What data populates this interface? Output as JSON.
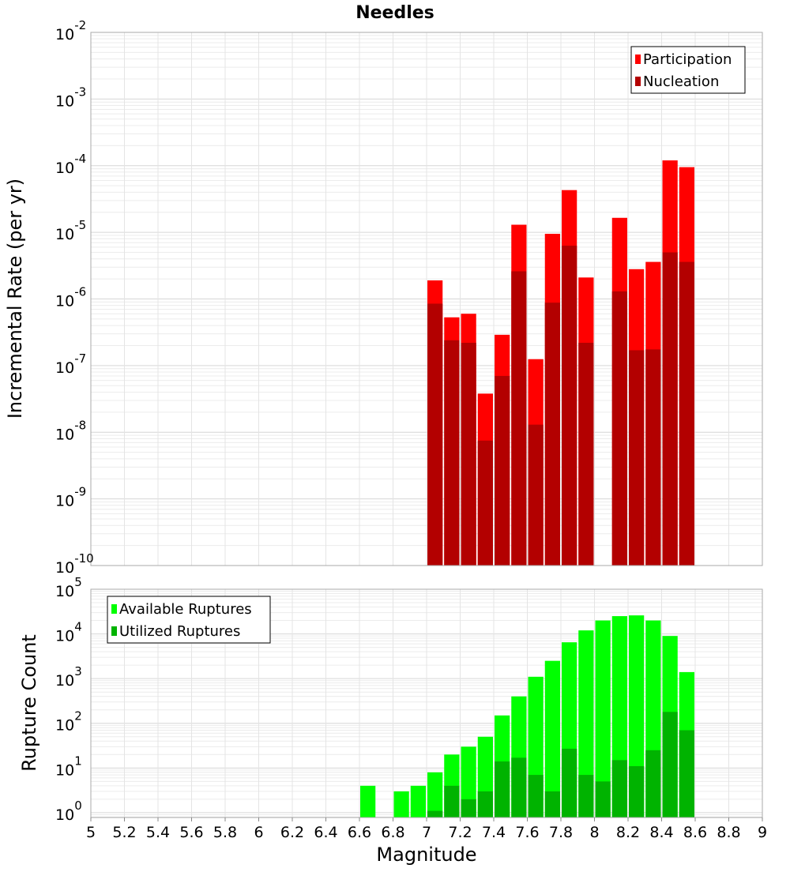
{
  "chart_data": {
    "title": "Needles",
    "xlabel": "Magnitude",
    "x_range": [
      5,
      9
    ],
    "x_ticks": [
      "5",
      "5.2",
      "5.4",
      "5.6",
      "5.8",
      "6",
      "6.2",
      "6.4",
      "6.6",
      "6.8",
      "7",
      "7.2",
      "7.4",
      "7.6",
      "7.8",
      "8",
      "8.2",
      "8.4",
      "8.6",
      "8.8",
      "9"
    ],
    "bin_width": 0.1,
    "grid": true,
    "panels": [
      {
        "type": "bar",
        "ylabel": "Incremental Rate (per yr)",
        "y_scale": "log",
        "ylim": [
          1e-10,
          0.01
        ],
        "y_tick_exponents": [
          "-10",
          "-9",
          "-8",
          "-7",
          "-6",
          "-5",
          "-4",
          "-3",
          "-2"
        ],
        "legend_position": "top-right",
        "series": [
          {
            "name": "Participation",
            "color": "#ff0000",
            "x": [
              7.05,
              7.15,
              7.25,
              7.35,
              7.45,
              7.55,
              7.65,
              7.75,
              7.85,
              7.95,
              8.15,
              8.25,
              8.35,
              8.45,
              8.55
            ],
            "values": [
              1.9e-06,
              5.3e-07,
              6e-07,
              3.8e-08,
              2.9e-07,
              1.3e-05,
              1.25e-07,
              9.5e-06,
              4.3e-05,
              2.1e-06,
              1.65e-05,
              2.8e-06,
              3.6e-06,
              0.00012,
              9.5e-05
            ]
          },
          {
            "name": "Nucleation",
            "color": "#b30000",
            "x": [
              7.05,
              7.15,
              7.25,
              7.35,
              7.45,
              7.55,
              7.65,
              7.75,
              7.85,
              7.95,
              8.15,
              8.25,
              8.35,
              8.45,
              8.55
            ],
            "values": [
              8.5e-07,
              2.4e-07,
              2.2e-07,
              7.5e-09,
              7e-08,
              2.6e-06,
              1.3e-08,
              8.8e-07,
              6.3e-06,
              2.2e-07,
              1.3e-06,
              1.7e-07,
              1.75e-07,
              5e-06,
              3.6e-06
            ]
          }
        ]
      },
      {
        "type": "bar",
        "ylabel": "Rupture Count",
        "y_scale": "log",
        "ylim": [
          0.78,
          100000
        ],
        "y_tick_exponents": [
          "0",
          "1",
          "2",
          "3",
          "4",
          "5"
        ],
        "legend_position": "top-left",
        "series": [
          {
            "name": "Available Ruptures",
            "color": "#00ff00",
            "x": [
              6.65,
              6.85,
              6.95,
              7.05,
              7.15,
              7.25,
              7.35,
              7.45,
              7.55,
              7.65,
              7.75,
              7.85,
              7.95,
              8.05,
              8.15,
              8.25,
              8.35,
              8.45,
              8.55
            ],
            "values": [
              4,
              3,
              4,
              8,
              20,
              30,
              50,
              150,
              400,
              1100,
              2500,
              6500,
              12000,
              20000,
              25000,
              26000,
              20000,
              9000,
              1400
            ]
          },
          {
            "name": "Utilized Ruptures",
            "color": "#00b300",
            "x": [
              7.05,
              7.15,
              7.25,
              7.35,
              7.45,
              7.55,
              7.65,
              7.75,
              7.85,
              7.95,
              8.05,
              8.15,
              8.25,
              8.35,
              8.45,
              8.55
            ],
            "values": [
              1.1,
              4,
              2,
              3,
              14,
              17,
              7,
              3,
              27,
              7,
              5,
              15,
              11,
              25,
              180,
              70
            ]
          }
        ]
      }
    ]
  }
}
